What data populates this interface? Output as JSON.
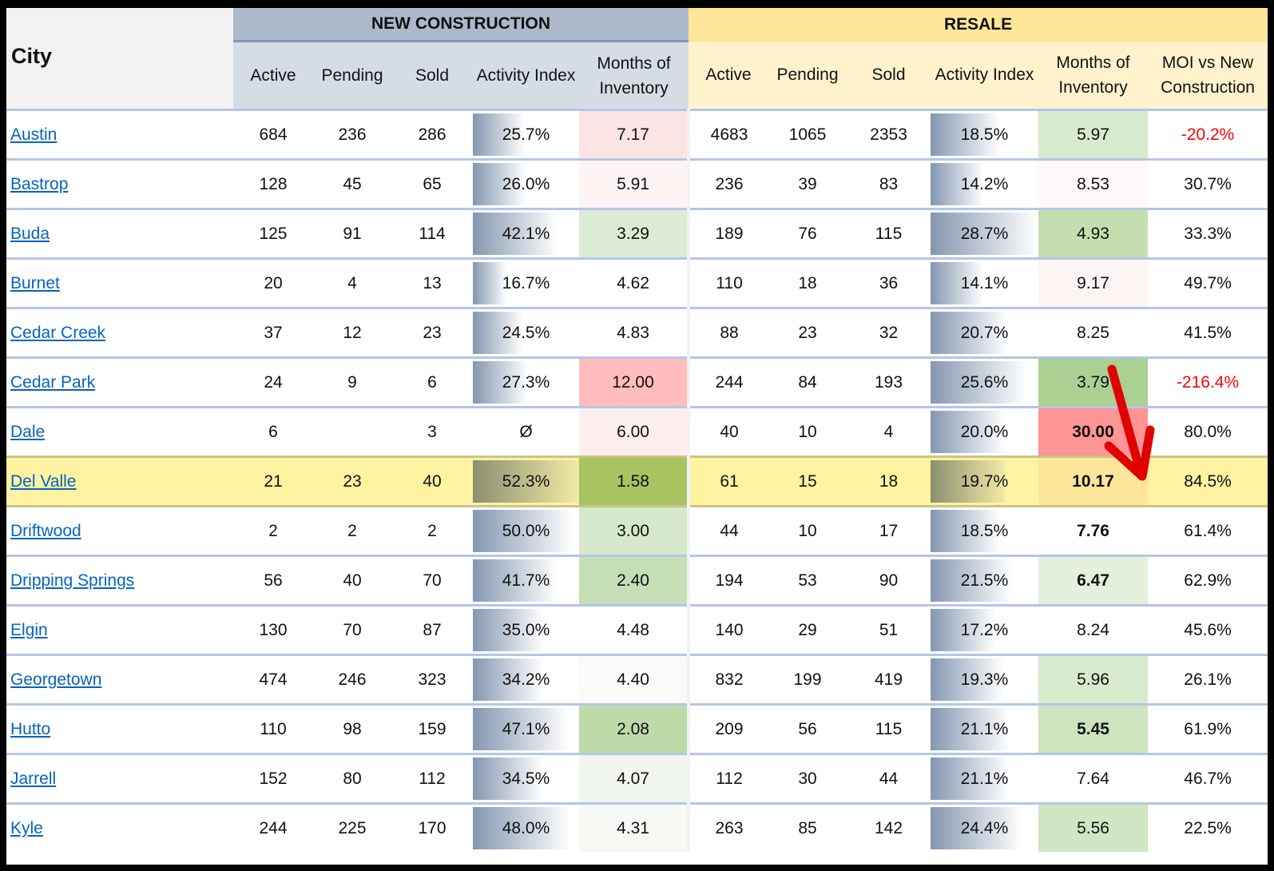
{
  "header": {
    "city": "City",
    "new_construction": "NEW CONSTRUCTION",
    "resale": "RESALE",
    "nc_cols": [
      "Active",
      "Pending",
      "Sold",
      "Activity Index",
      "Months of Inventory"
    ],
    "rs_cols": [
      "Active",
      "Pending",
      "Sold",
      "Activity Index",
      "Months of Inventory",
      "MOI vs New Construction"
    ]
  },
  "rows": [
    {
      "city": "Austin",
      "nc": [
        "684",
        "236",
        "286",
        "25.7%",
        "7.17"
      ],
      "nc_ai": 25.7,
      "nc_moi_color": "#fde4e4",
      "rs": [
        "4683",
        "1065",
        "2353",
        "18.5%",
        "5.97",
        "-20.2%"
      ],
      "rs_ai": 18.5,
      "rs_moi_color": "#d8eacd",
      "neg": true
    },
    {
      "city": "Bastrop",
      "nc": [
        "128",
        "45",
        "65",
        "26.0%",
        "5.91"
      ],
      "nc_ai": 26.0,
      "nc_moi_color": "#fdf3f3",
      "rs": [
        "236",
        "39",
        "83",
        "14.2%",
        "8.53",
        "30.7%"
      ],
      "rs_ai": 14.2,
      "rs_moi_color": "#fef8f8"
    },
    {
      "city": "Buda",
      "nc": [
        "125",
        "91",
        "114",
        "42.1%",
        "3.29"
      ],
      "nc_ai": 42.1,
      "nc_moi_color": "#dcebd3",
      "rs": [
        "189",
        "76",
        "115",
        "28.7%",
        "4.93",
        "33.3%"
      ],
      "rs_ai": 28.7,
      "rs_moi_color": "#c4deb0"
    },
    {
      "city": "Burnet",
      "nc": [
        "20",
        "4",
        "13",
        "16.7%",
        "4.62"
      ],
      "nc_ai": 16.7,
      "nc_moi_color": "#ffffff",
      "rs": [
        "110",
        "18",
        "36",
        "14.1%",
        "9.17",
        "49.7%"
      ],
      "rs_ai": 14.1,
      "rs_moi_color": "#fdf4f4"
    },
    {
      "city": "Cedar Creek",
      "nc": [
        "37",
        "12",
        "23",
        "24.5%",
        "4.83"
      ],
      "nc_ai": 24.5,
      "nc_moi_color": "#ffffff",
      "rs": [
        "88",
        "23",
        "32",
        "20.7%",
        "8.25",
        "41.5%"
      ],
      "rs_ai": 20.7,
      "rs_moi_color": "#ffffff"
    },
    {
      "city": "Cedar Park",
      "nc": [
        "24",
        "9",
        "6",
        "27.3%",
        "12.00"
      ],
      "nc_ai": 27.3,
      "nc_moi_color": "#ffbcbc",
      "rs": [
        "244",
        "84",
        "193",
        "25.6%",
        "3.79",
        "-216.4%"
      ],
      "rs_ai": 25.6,
      "rs_moi_color": "#aad092",
      "neg": true
    },
    {
      "city": "Dale",
      "nc": [
        "6",
        "",
        "3",
        "Ø",
        "6.00"
      ],
      "nc_ai": 0,
      "nc_moi_color": "#fdeeee",
      "rs": [
        "40",
        "10",
        "4",
        "20.0%",
        "30.00",
        "80.0%"
      ],
      "rs_ai": 20.0,
      "rs_moi_color": "#ff9494",
      "rs_moi_bold": true
    },
    {
      "city": "Del Valle",
      "nc": [
        "21",
        "23",
        "40",
        "52.3%",
        "1.58"
      ],
      "nc_ai": 52.3,
      "nc_moi_color": "#a8c460",
      "rs": [
        "61",
        "15",
        "18",
        "19.7%",
        "10.17",
        "84.5%"
      ],
      "rs_ai": 19.7,
      "rs_moi_color": "#fde59a",
      "rs_moi_bold": true,
      "highlight": true
    },
    {
      "city": "Driftwood",
      "nc": [
        "2",
        "2",
        "2",
        "50.0%",
        "3.00"
      ],
      "nc_ai": 50.0,
      "nc_moi_color": "#d6e8cc",
      "rs": [
        "44",
        "10",
        "17",
        "18.5%",
        "7.76",
        "61.4%"
      ],
      "rs_ai": 18.5,
      "rs_moi_color": "#ffffff",
      "rs_moi_bold": true
    },
    {
      "city": "Dripping Springs",
      "nc": [
        "56",
        "40",
        "70",
        "41.7%",
        "2.40"
      ],
      "nc_ai": 41.7,
      "nc_moi_color": "#c4deb6",
      "rs": [
        "194",
        "53",
        "90",
        "21.5%",
        "6.47",
        "62.9%"
      ],
      "rs_ai": 21.5,
      "rs_moi_color": "#e4f0dc",
      "rs_moi_bold": true
    },
    {
      "city": "Elgin",
      "nc": [
        "130",
        "70",
        "87",
        "35.0%",
        "4.48"
      ],
      "nc_ai": 35.0,
      "nc_moi_color": "#ffffff",
      "rs": [
        "140",
        "29",
        "51",
        "17.2%",
        "8.24",
        "45.6%"
      ],
      "rs_ai": 17.2,
      "rs_moi_color": "#ffffff"
    },
    {
      "city": "Georgetown",
      "nc": [
        "474",
        "246",
        "323",
        "34.2%",
        "4.40"
      ],
      "nc_ai": 34.2,
      "nc_moi_color": "#fafaf8",
      "rs": [
        "832",
        "199",
        "419",
        "19.3%",
        "5.96",
        "26.1%"
      ],
      "rs_ai": 19.3,
      "rs_moi_color": "#d8eacd"
    },
    {
      "city": "Hutto",
      "nc": [
        "110",
        "98",
        "159",
        "47.1%",
        "2.08"
      ],
      "nc_ai": 47.1,
      "nc_moi_color": "#bcdba8",
      "rs": [
        "209",
        "56",
        "115",
        "21.1%",
        "5.45",
        "61.9%"
      ],
      "rs_ai": 21.1,
      "rs_moi_color": "#cde4bf",
      "rs_moi_bold": true
    },
    {
      "city": "Jarrell",
      "nc": [
        "152",
        "80",
        "112",
        "34.5%",
        "4.07"
      ],
      "nc_ai": 34.5,
      "nc_moi_color": "#f1f6ee",
      "rs": [
        "112",
        "30",
        "44",
        "21.1%",
        "7.64",
        "46.7%"
      ],
      "rs_ai": 21.1,
      "rs_moi_color": "#ffffff"
    },
    {
      "city": "Kyle",
      "nc": [
        "244",
        "225",
        "170",
        "48.0%",
        "4.31"
      ],
      "nc_ai": 48.0,
      "nc_moi_color": "#f7f9f4",
      "rs": [
        "263",
        "85",
        "142",
        "24.4%",
        "5.56",
        "22.5%"
      ],
      "rs_ai": 24.4,
      "rs_moi_color": "#d0e6c3"
    }
  ]
}
